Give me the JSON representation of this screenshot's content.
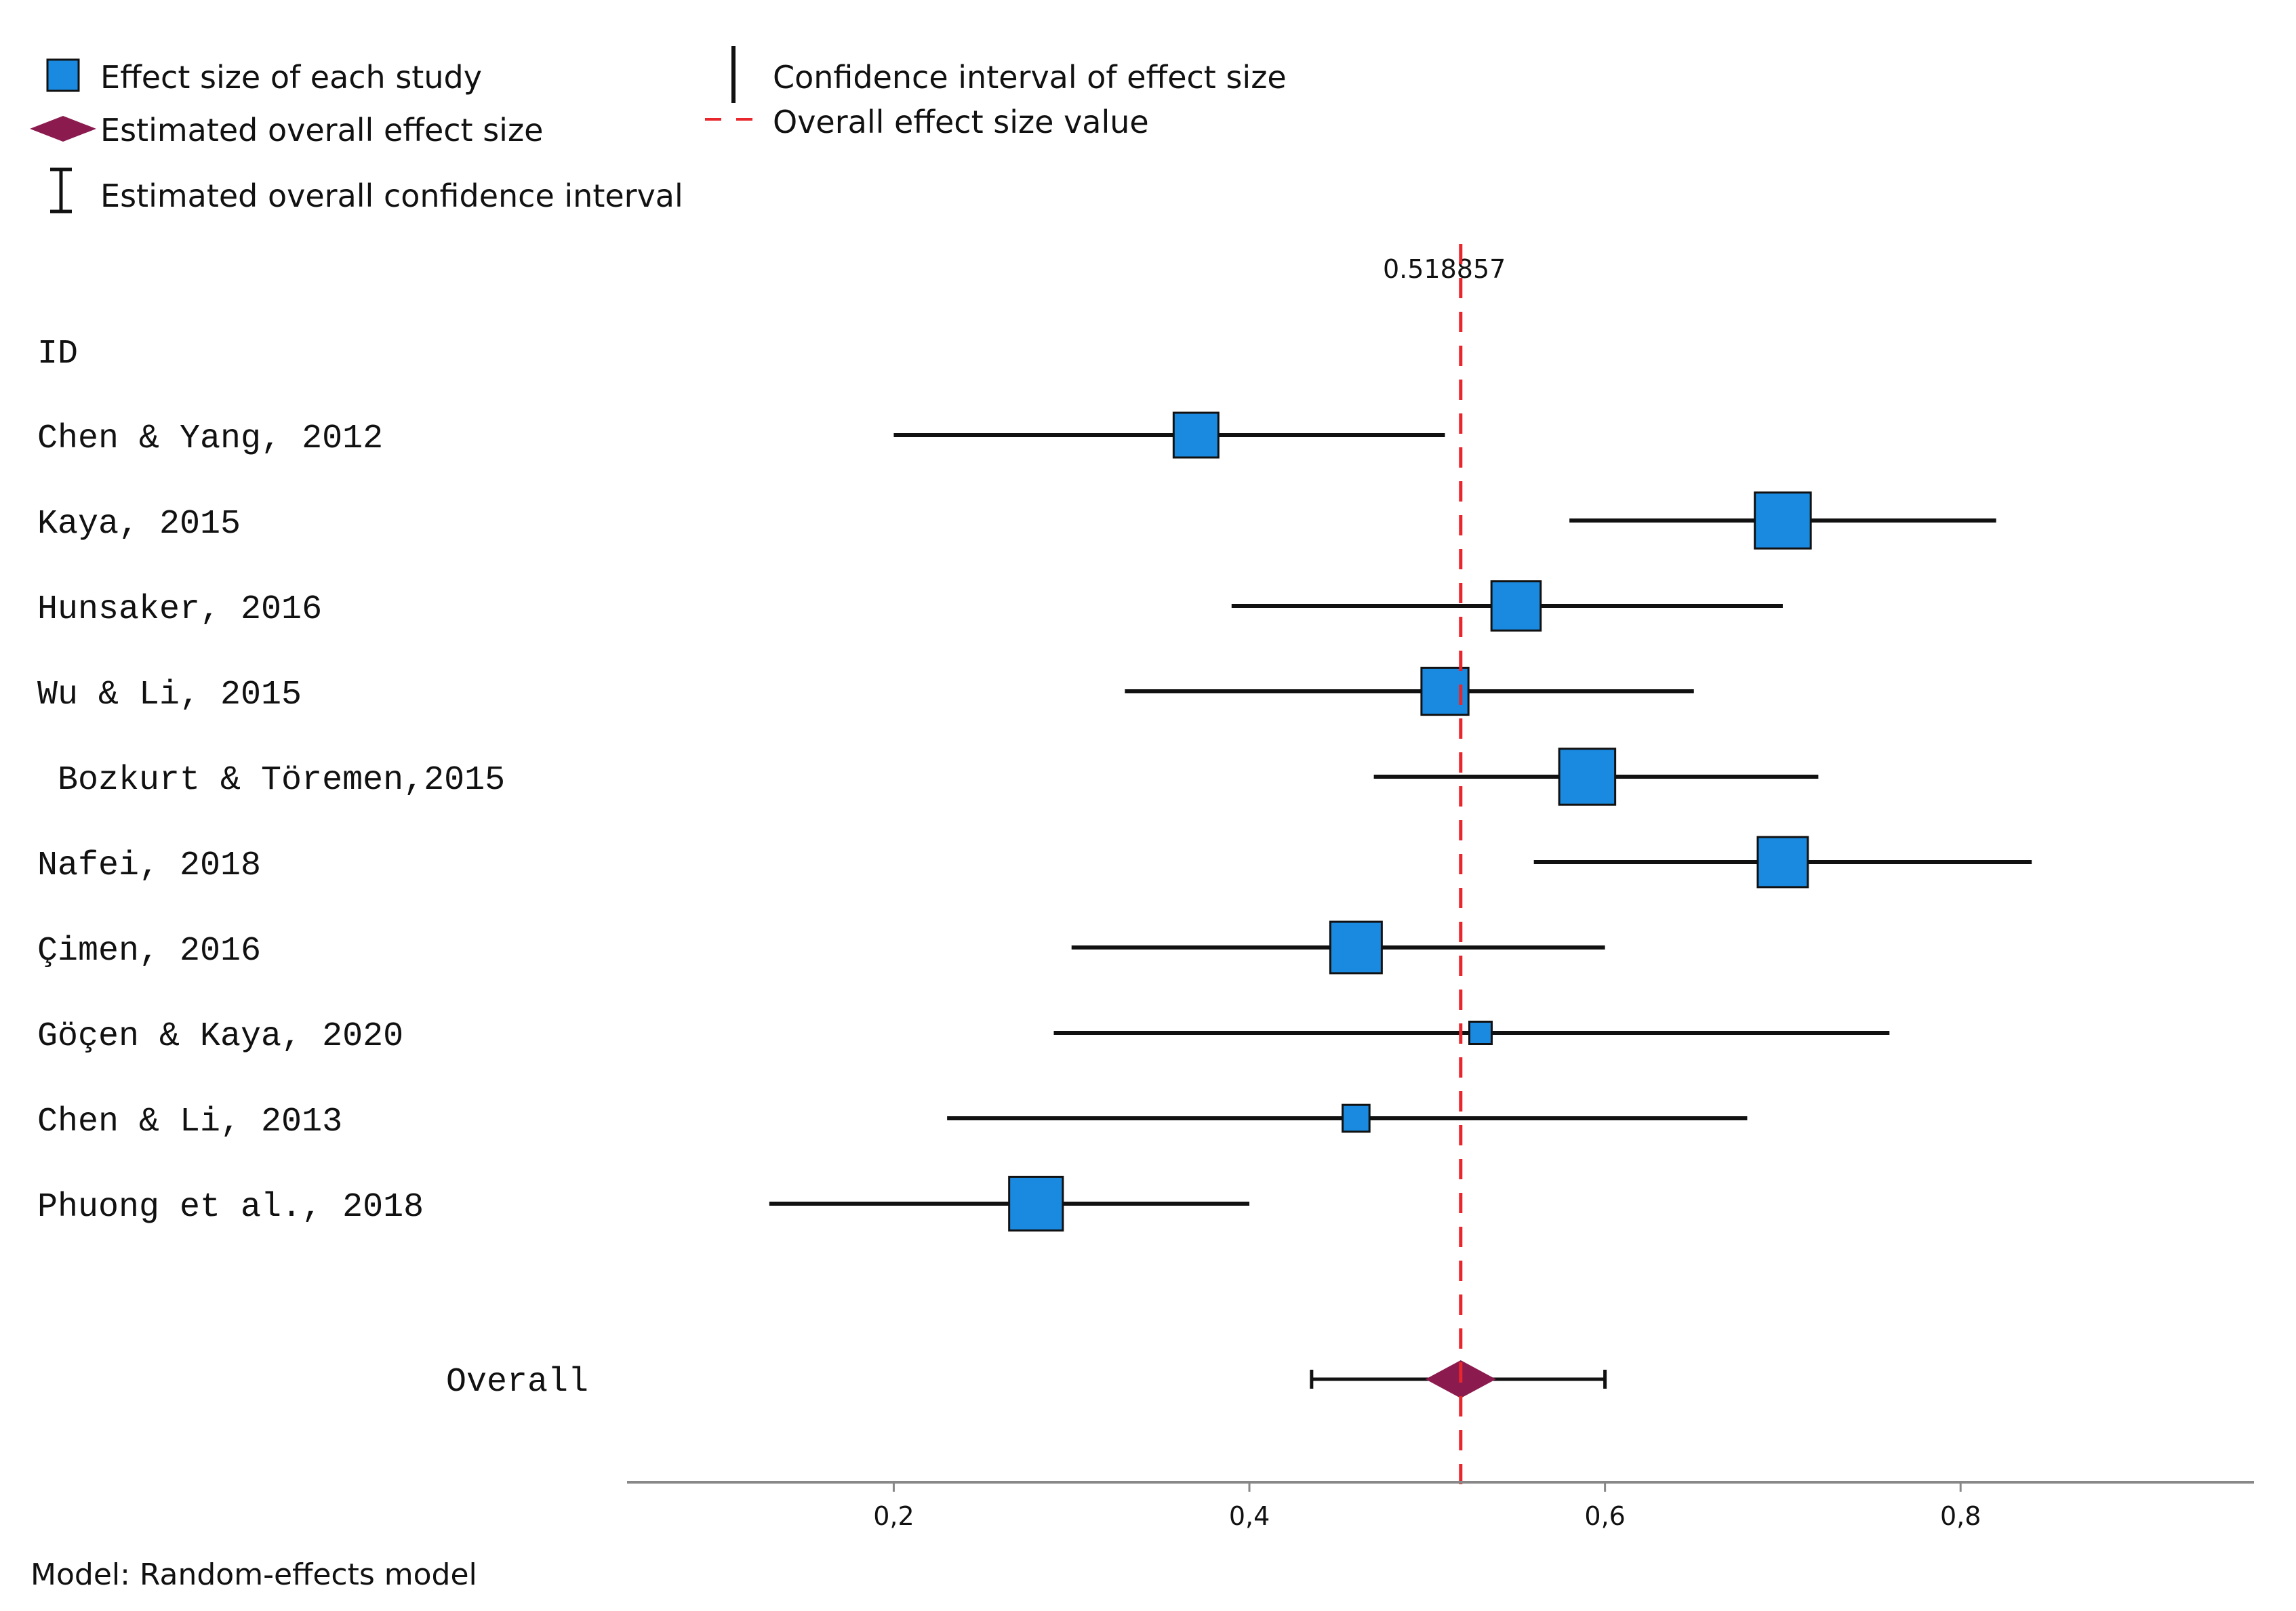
{
  "legend": {
    "study_effect": "Effect size of each study",
    "overall_effect": "Estimated overall effect size",
    "overall_ci": "Estimated overall confidence interval",
    "study_ci": "Confidence interval of effect size",
    "overall_line": "Overall effect size value"
  },
  "colors": {
    "study_square": "#1a8ae0",
    "overall_diamond": "#8b1b4e",
    "ref_line": "#e8262c",
    "ink": "#111111"
  },
  "chart_data": {
    "type": "forest",
    "id_header": "ID",
    "reference_label": "0.518857",
    "reference_value": 0.518857,
    "x_ticks": [
      0.2,
      0.4,
      0.6,
      0.8
    ],
    "x_tick_labels": [
      "0,2",
      "0,4",
      "0,6",
      "0,8"
    ],
    "xlim": [
      0.05,
      0.965
    ],
    "studies": [
      {
        "label": "Chen & Yang, 2012",
        "effect": 0.37,
        "lower": 0.2,
        "upper": 0.51,
        "weight": 1.0
      },
      {
        "label": "Kaya, 2015",
        "effect": 0.7,
        "lower": 0.58,
        "upper": 0.82,
        "weight": 1.25
      },
      {
        "label": "Hunsaker, 2016",
        "effect": 0.55,
        "lower": 0.39,
        "upper": 0.7,
        "weight": 1.1
      },
      {
        "label": "Wu & Li, 2015",
        "effect": 0.51,
        "lower": 0.33,
        "upper": 0.65,
        "weight": 1.05
      },
      {
        "label": " Bozkurt & Töremen,2015",
        "effect": 0.59,
        "lower": 0.47,
        "upper": 0.72,
        "weight": 1.25
      },
      {
        "label": "Nafei, 2018",
        "effect": 0.7,
        "lower": 0.56,
        "upper": 0.84,
        "weight": 1.12
      },
      {
        "label": "Çimen, 2016",
        "effect": 0.46,
        "lower": 0.3,
        "upper": 0.6,
        "weight": 1.15
      },
      {
        "label": "Göçen & Kaya, 2020",
        "effect": 0.53,
        "lower": 0.29,
        "upper": 0.76,
        "weight": 0.5
      },
      {
        "label": "Chen & Li, 2013",
        "effect": 0.46,
        "lower": 0.23,
        "upper": 0.68,
        "weight": 0.6
      },
      {
        "label": "Phuong et al., 2018",
        "effect": 0.28,
        "lower": 0.13,
        "upper": 0.4,
        "weight": 1.2
      }
    ],
    "overall": {
      "label": "Overall",
      "effect": 0.518857,
      "lower": 0.435,
      "upper": 0.6
    }
  },
  "footer": {
    "model_note": "Model: Random-effects model"
  }
}
